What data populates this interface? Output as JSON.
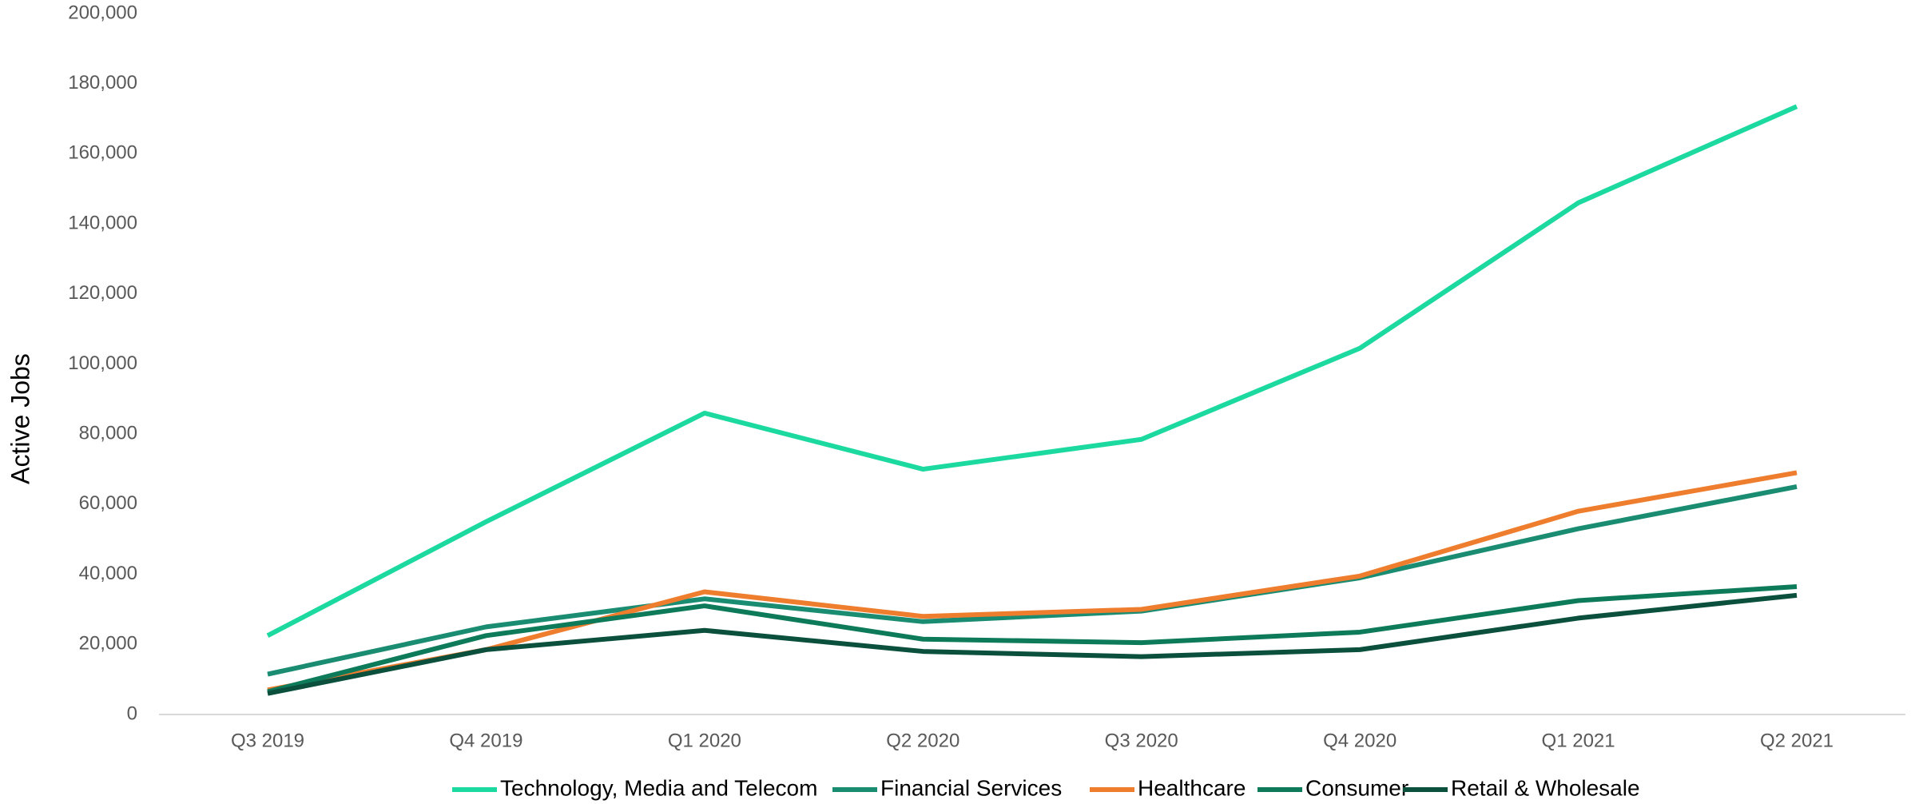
{
  "chart_data": {
    "type": "line",
    "y_label": "Active Jobs",
    "categories": [
      "Q3 2019",
      "Q4 2019",
      "Q1 2020",
      "Q2 2020",
      "Q3 2020",
      "Q4 2020",
      "Q1 2021",
      "Q2 2021"
    ],
    "series": [
      {
        "name": "Technology, Media and Telecom",
        "color": "#1cd9a0",
        "values": [
          22500,
          55000,
          86000,
          70000,
          78500,
          104500,
          146000,
          173500
        ]
      },
      {
        "name": "Financial Services",
        "color": "#1a8c72",
        "values": [
          11500,
          25000,
          33000,
          26500,
          29500,
          39000,
          53000,
          65000
        ]
      },
      {
        "name": "Healthcare",
        "color": "#ee7d2e",
        "values": [
          7000,
          18500,
          35000,
          28000,
          30000,
          39500,
          58000,
          69000
        ]
      },
      {
        "name": "Consumer",
        "color": "#0d7a5a",
        "values": [
          6500,
          22500,
          31000,
          21500,
          20500,
          23500,
          32500,
          36500
        ]
      },
      {
        "name": "Retail & Wholesale",
        "color": "#0b4f3d",
        "values": [
          6000,
          18500,
          24000,
          18000,
          16500,
          18500,
          27500,
          34000
        ]
      }
    ],
    "ylim": [
      0,
      200000
    ],
    "yticks": [
      0,
      {
        "value": 20000,
        "label": "20,000"
      },
      {
        "value": 40000,
        "label": "40,000"
      },
      {
        "value": 60000,
        "label": "60,000"
      },
      {
        "value": 80000,
        "label": "80,000"
      },
      {
        "value": 100000,
        "label": "100,000"
      },
      {
        "value": 120000,
        "label": "120,000"
      },
      {
        "value": 140000,
        "label": "140,000"
      },
      {
        "value": 160000,
        "label": "160,000"
      },
      {
        "value": 180000,
        "label": "180,000"
      },
      {
        "value": 200000,
        "label": "200,000"
      }
    ],
    "grid": false,
    "legend": "bottom"
  }
}
